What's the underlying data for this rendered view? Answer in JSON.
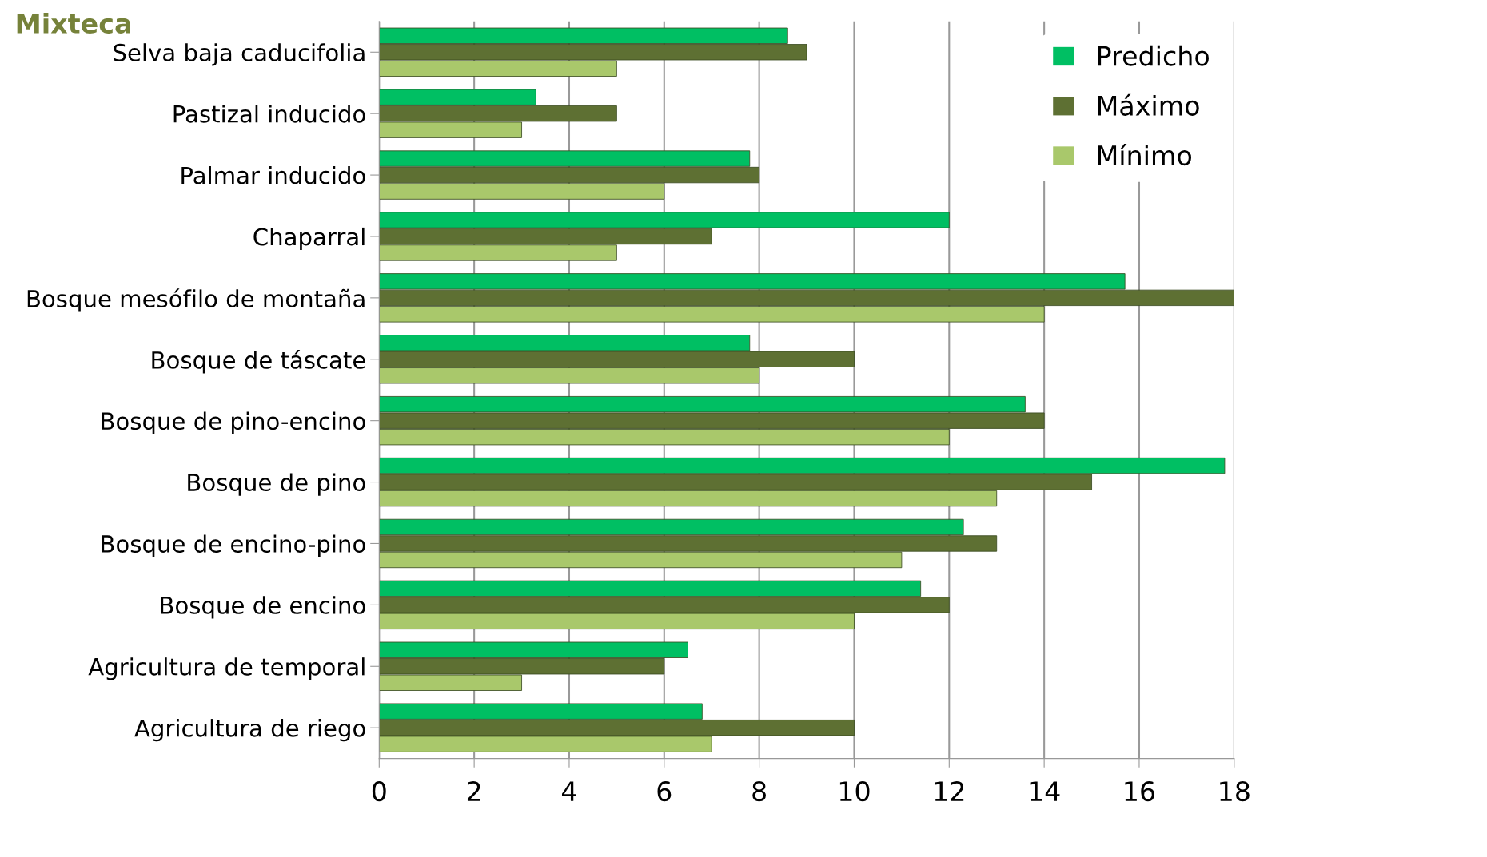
{
  "chart_data": {
    "type": "bar",
    "orientation": "horizontal",
    "title": "Mixteca",
    "categories": [
      "Selva baja caducifolia",
      "Pastizal inducido",
      "Palmar inducido",
      "Chaparral",
      "Bosque mesófilo de montaña",
      "Bosque de táscate",
      "Bosque de pino-encino",
      "Bosque de pino",
      "Bosque de encino-pino",
      "Bosque de encino",
      "Agricultura de temporal",
      "Agricultura de riego"
    ],
    "series": [
      {
        "name": "Predicho",
        "color": "#00bf63",
        "values": [
          8.6,
          3.3,
          7.8,
          12,
          15.7,
          7.8,
          13.6,
          17.8,
          12.3,
          11.4,
          6.5,
          6.8
        ]
      },
      {
        "name": "Máximo",
        "color": "#5e7033",
        "values": [
          9,
          5,
          8,
          7,
          18,
          10,
          14,
          15,
          13,
          12,
          6,
          10
        ]
      },
      {
        "name": "Mínimo",
        "color": "#a9c86b",
        "values": [
          5,
          3,
          6,
          5,
          14,
          8,
          12,
          13,
          11,
          10,
          3,
          7
        ]
      }
    ],
    "xlim": [
      0,
      18
    ],
    "xticks": [
      0,
      2,
      4,
      6,
      8,
      10,
      12,
      14,
      16,
      18
    ],
    "grid": "x",
    "legend": "top right"
  }
}
